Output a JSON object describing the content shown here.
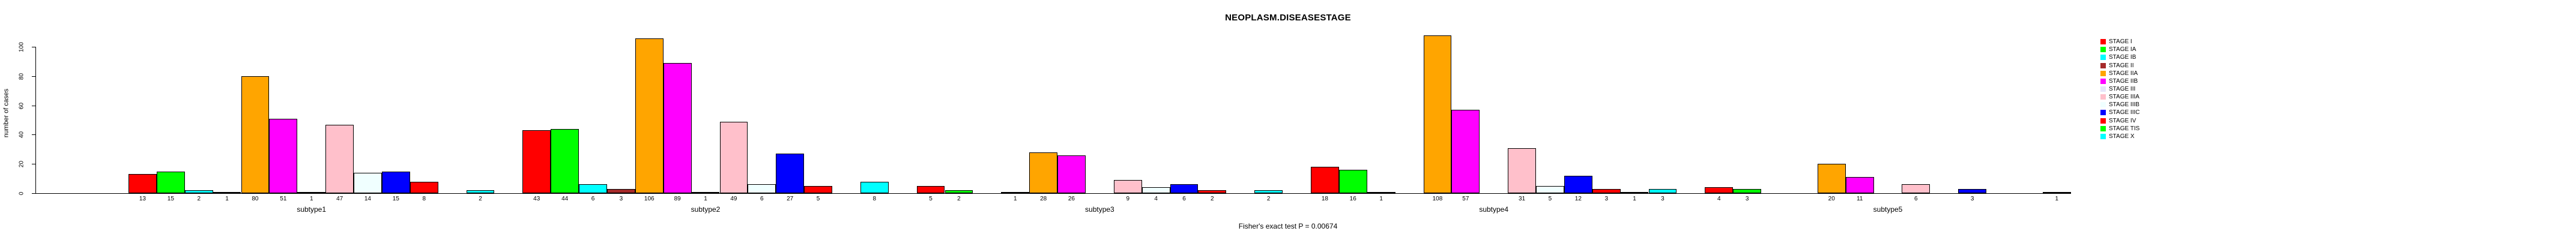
{
  "title": "NEOPLASM.DISEASESTAGE",
  "footer_note": "Fisher's exact test P = 0.00674",
  "chart_data": {
    "type": "bar",
    "title": "NEOPLASM.DISEASESTAGE",
    "xlabel": "",
    "ylabel": "number of cases",
    "ylim": [
      0,
      100
    ],
    "yticks": [
      0,
      20,
      40,
      60,
      80,
      100
    ],
    "grid": false,
    "legend_position": "right",
    "bar_value_labels": true,
    "annotation": "Fisher's exact test P = 0.00674",
    "categories": [
      "subtype1",
      "subtype2",
      "subtype3",
      "subtype4",
      "subtype5"
    ],
    "series": [
      {
        "name": "STAGE I",
        "color": "#FF0000",
        "values": [
          13,
          43,
          5,
          18,
          4
        ]
      },
      {
        "name": "STAGE IA",
        "color": "#00FF00",
        "values": [
          15,
          44,
          2,
          16,
          3
        ]
      },
      {
        "name": "STAGE IB",
        "color": "#00FFFF",
        "values": [
          2,
          6,
          0,
          1,
          0
        ]
      },
      {
        "name": "STAGE II",
        "color": "#A52A2A",
        "values": [
          1,
          3,
          1,
          0,
          0
        ]
      },
      {
        "name": "STAGE IIA",
        "color": "#FFA500",
        "values": [
          80,
          106,
          28,
          108,
          20
        ]
      },
      {
        "name": "STAGE IIB",
        "color": "#FF00FF",
        "values": [
          51,
          89,
          26,
          57,
          11
        ]
      },
      {
        "name": "STAGE III",
        "color": "#E6E6FA",
        "values": [
          1,
          1,
          0,
          0,
          0
        ]
      },
      {
        "name": "STAGE IIIA",
        "color": "#FFC0CB",
        "values": [
          47,
          49,
          9,
          31,
          6
        ]
      },
      {
        "name": "STAGE IIIB",
        "color": "#F0FFFF",
        "values": [
          14,
          6,
          4,
          5,
          0
        ]
      },
      {
        "name": "STAGE IIIC",
        "color": "#0000FF",
        "values": [
          15,
          27,
          6,
          12,
          3
        ]
      },
      {
        "name": "STAGE IV",
        "color": "#FF0000",
        "values": [
          8,
          5,
          2,
          3,
          0
        ]
      },
      {
        "name": "STAGE TIS",
        "color": "#00FF00",
        "values": [
          0,
          0,
          0,
          1,
          0
        ]
      },
      {
        "name": "STAGE X",
        "color": "#00FFFF",
        "values": [
          2,
          8,
          2,
          3,
          1
        ]
      }
    ]
  }
}
